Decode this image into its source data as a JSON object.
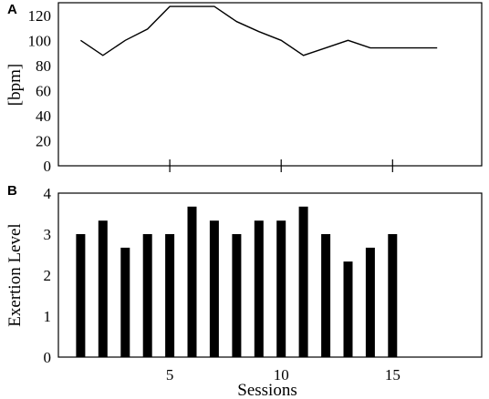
{
  "chart_data": [
    {
      "panel": "A",
      "type": "line",
      "ylabel": "[bpm]",
      "ylim": [
        0,
        130
      ],
      "yticks": [
        0,
        20,
        40,
        60,
        80,
        100,
        120
      ],
      "xlim": [
        0,
        19
      ],
      "xticks": [
        5,
        10,
        15
      ],
      "x": [
        1,
        2,
        3,
        4,
        5,
        6,
        7,
        8,
        9,
        10,
        11,
        12,
        13,
        14,
        15,
        16,
        17
      ],
      "values": [
        100,
        88,
        100,
        109,
        127,
        127,
        127,
        115,
        107,
        100,
        88,
        94,
        100,
        94,
        94,
        94,
        94
      ],
      "grid": false
    },
    {
      "panel": "B",
      "type": "bar",
      "ylabel": "Exertion Level",
      "xlabel": "Sessions",
      "ylim": [
        0,
        4
      ],
      "yticks": [
        0,
        1,
        2,
        3,
        4
      ],
      "xlim": [
        0,
        19
      ],
      "xticks": [
        5,
        10,
        15
      ],
      "categories": [
        1,
        2,
        3,
        4,
        5,
        6,
        7,
        8,
        9,
        10,
        11,
        12,
        13,
        14,
        15
      ],
      "values": [
        3.0,
        3.33,
        2.67,
        3.0,
        3.0,
        3.67,
        3.33,
        3.0,
        3.33,
        3.33,
        3.67,
        3.0,
        2.33,
        2.67,
        3.0
      ],
      "grid": false
    }
  ]
}
